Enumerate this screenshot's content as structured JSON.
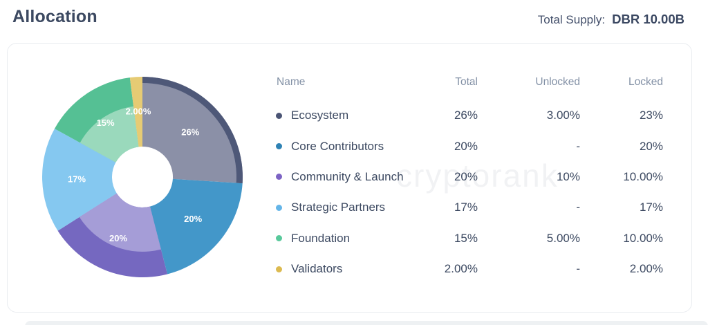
{
  "header": {
    "title": "Allocation",
    "total_supply_label": "Total Supply:",
    "total_supply_value": "DBR 10.00B"
  },
  "watermark": "cryptorank",
  "table": {
    "columns": [
      "Name",
      "Total",
      "Unlocked",
      "Locked"
    ],
    "rows": [
      {
        "name": "Ecosystem",
        "dot": "#4a5474",
        "total": "26%",
        "unlocked": "3.00%",
        "locked": "23%"
      },
      {
        "name": "Core Contributors",
        "dot": "#2e82b4",
        "total": "20%",
        "unlocked": "-",
        "locked": "20%"
      },
      {
        "name": "Community & Launch",
        "dot": "#7c63c4",
        "total": "20%",
        "unlocked": "10%",
        "locked": "10.00%"
      },
      {
        "name": "Strategic Partners",
        "dot": "#64b5e8",
        "total": "17%",
        "unlocked": "-",
        "locked": "17%"
      },
      {
        "name": "Foundation",
        "dot": "#58c99b",
        "total": "15%",
        "unlocked": "5.00%",
        "locked": "10.00%"
      },
      {
        "name": "Validators",
        "dot": "#dcba50",
        "total": "2.00%",
        "unlocked": "-",
        "locked": "2.00%"
      }
    ]
  },
  "chart_data": {
    "type": "pie",
    "donut": true,
    "title": "Allocation",
    "unit": "%",
    "start_angle_deg": 0,
    "direction": "clockwise",
    "total": 100,
    "slices": [
      {
        "name": "Ecosystem",
        "value": 26,
        "label": "26%",
        "color": "#8b90a7",
        "rim_color": "#4e5878"
      },
      {
        "name": "Core Contributors",
        "value": 20,
        "label": "20%",
        "color": "#4397c9"
      },
      {
        "name": "Community & Launch",
        "value": 20,
        "label": "20%",
        "color": "#7568c0",
        "unlocked_color": "#a59dd7",
        "unlocked_inner_ratio": 0.745
      },
      {
        "name": "Strategic Partners",
        "value": 17,
        "label": "17%",
        "color": "#85c8f0"
      },
      {
        "name": "Foundation",
        "value": 15,
        "label": "15%",
        "color": "#55c094",
        "unlocked_color": "#9ad9bc",
        "unlocked_inner_ratio": 0.71
      },
      {
        "name": "Validators",
        "value": 2,
        "label": "2.00%",
        "color": "#e6cb74"
      }
    ]
  }
}
